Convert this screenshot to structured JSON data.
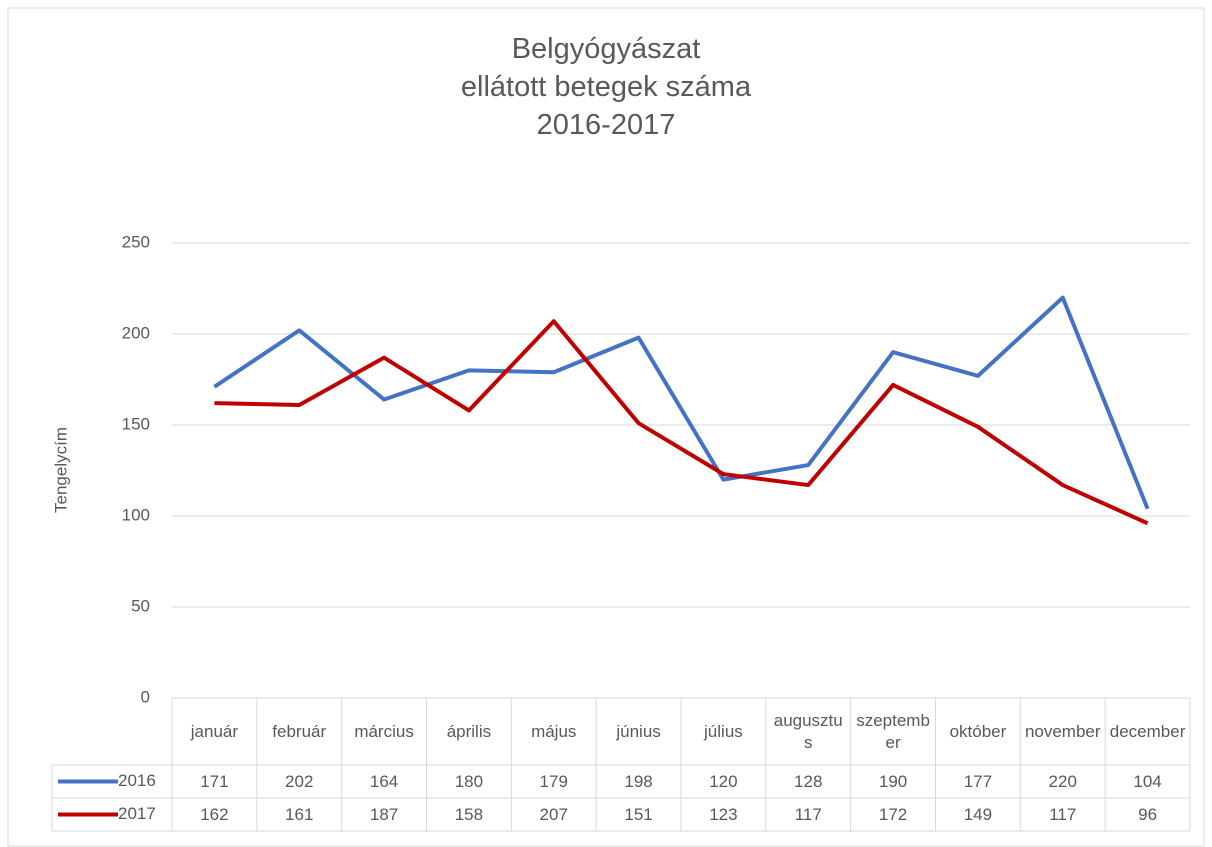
{
  "chart_data": {
    "type": "line",
    "title": "Belgyógyászat\nellátott betegek száma\n2016-2017",
    "y_label": "Tengelycím",
    "categories": [
      "január",
      "február",
      "március",
      "április",
      "május",
      "június",
      "július",
      "augusztus",
      "szeptember",
      "október",
      "november",
      "december"
    ],
    "series": [
      {
        "name": "2016",
        "color": "#4472c4",
        "values": [
          171,
          202,
          164,
          180,
          179,
          198,
          120,
          128,
          190,
          177,
          220,
          104
        ]
      },
      {
        "name": "2017",
        "color": "#c00000",
        "values": [
          162,
          161,
          187,
          158,
          207,
          151,
          123,
          117,
          172,
          149,
          117,
          96
        ]
      }
    ],
    "ylim": [
      0,
      250
    ],
    "yticks": [
      0,
      50,
      100,
      150,
      200,
      250
    ],
    "grid": true,
    "data_table": true
  }
}
